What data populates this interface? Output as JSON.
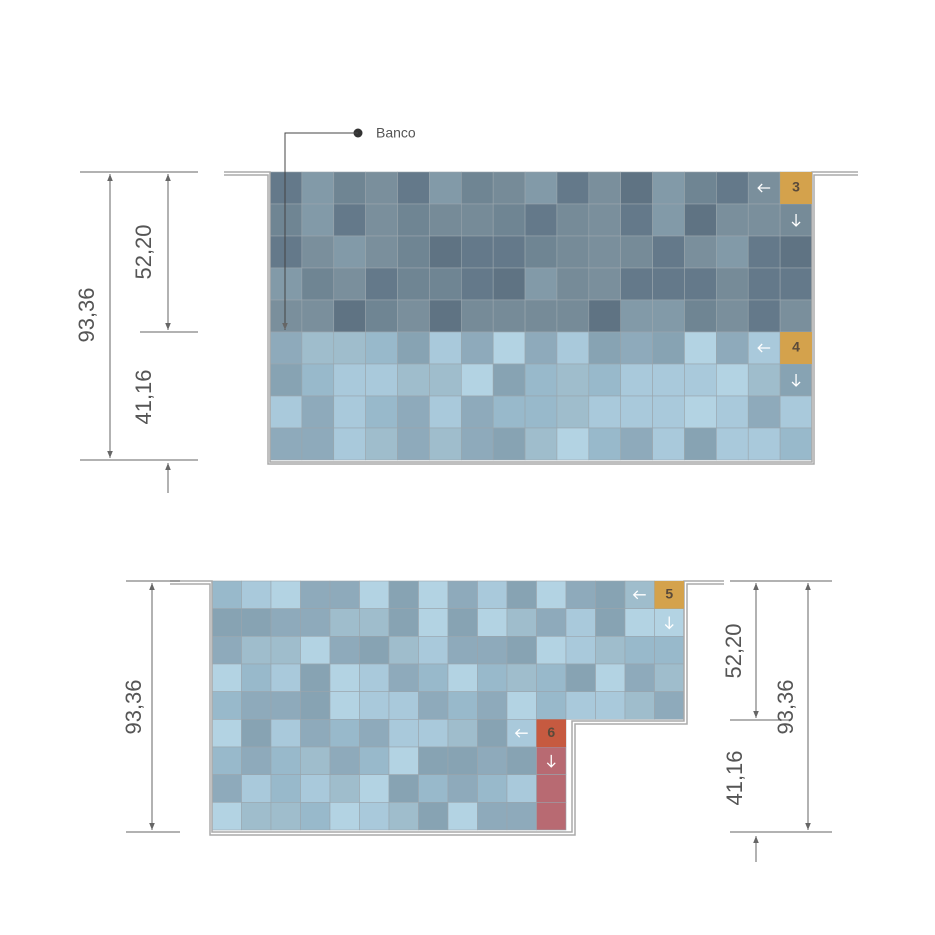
{
  "callout": {
    "label": "Banco"
  },
  "diagrams": [
    {
      "dimensions": [
        "93,36",
        "52,20",
        "41,16"
      ],
      "markers": [
        "3",
        "4"
      ]
    },
    {
      "dimensions": [
        "93,36",
        "52,20",
        "41,16",
        "93,36"
      ],
      "markers": [
        "5",
        "6"
      ]
    }
  ]
}
